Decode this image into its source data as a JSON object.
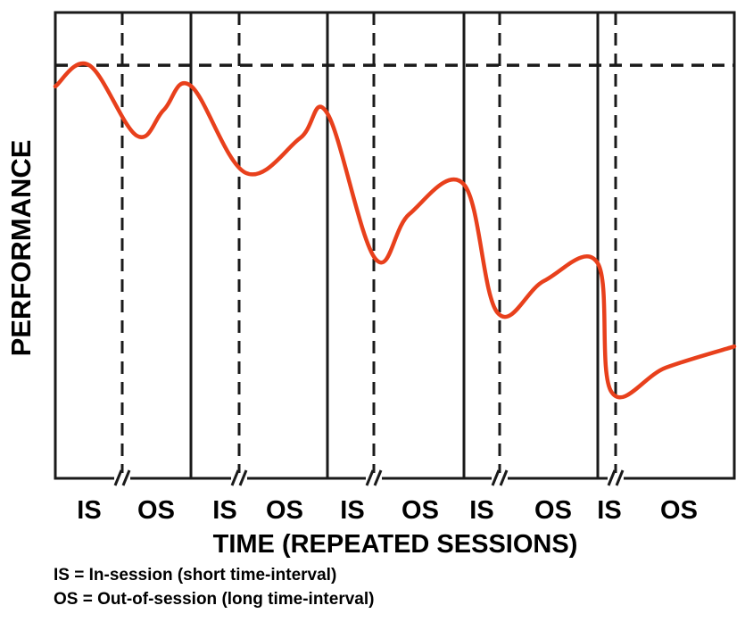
{
  "chart_data": {
    "type": "line",
    "title": "",
    "xlabel": "TIME (REPEATED SESSIONS)",
    "ylabel": "PERFORMANCE",
    "phase_labels": [
      "IS",
      "OS",
      "IS",
      "OS",
      "IS",
      "OS",
      "IS",
      "OS",
      "IS",
      "OS"
    ],
    "sessions": 5,
    "series": [
      {
        "color": "#e8401c",
        "points": [
          [
            0.0,
            0.835
          ],
          [
            0.25,
            0.88
          ],
          [
            0.6,
            0.73
          ],
          [
            0.8,
            0.785
          ],
          [
            1.0,
            0.836
          ],
          [
            1.4,
            0.651
          ],
          [
            1.8,
            0.725
          ],
          [
            2.0,
            0.777
          ],
          [
            2.35,
            0.468
          ],
          [
            2.6,
            0.563
          ],
          [
            3.0,
            0.626
          ],
          [
            3.25,
            0.353
          ],
          [
            3.6,
            0.421
          ],
          [
            4.0,
            0.458
          ],
          [
            4.1,
            0.184
          ],
          [
            4.5,
            0.236
          ],
          [
            5.0,
            0.281
          ]
        ]
      }
    ],
    "reference_line": 0.88,
    "ylim": [
      0,
      1
    ],
    "xlim": [
      0,
      5
    ]
  },
  "legend": {
    "is_text": "IS = In-session (short time-interval)",
    "os_text": "OS = Out-of-session (long time-interval)"
  },
  "colors": {
    "curve": "#e8401c",
    "frame": "#1a1a1a"
  }
}
